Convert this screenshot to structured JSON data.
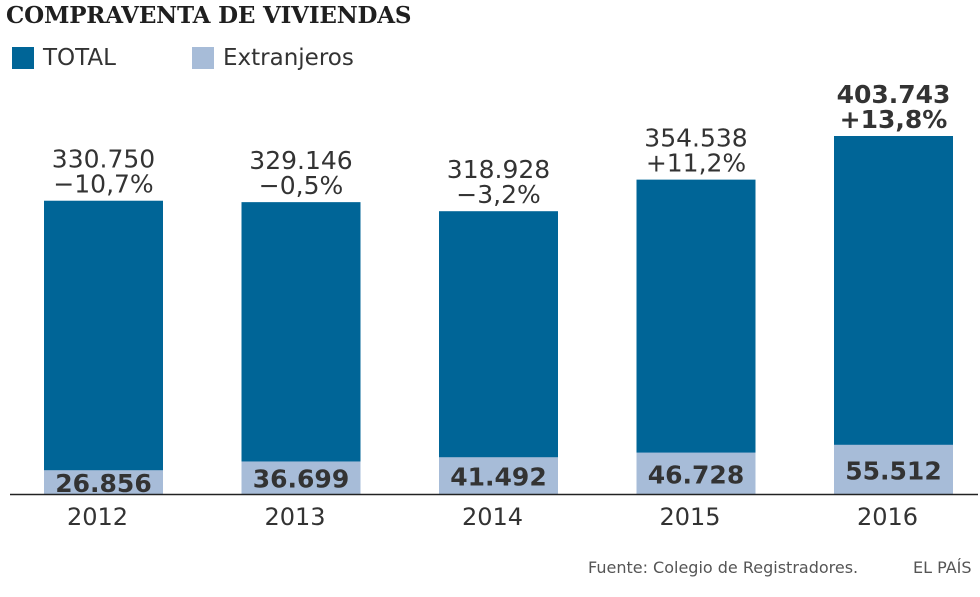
{
  "title": "COMPRAVENTA DE VIVIENDAS",
  "colors": {
    "total": "#006597",
    "extranjeros": "#a7bcd8",
    "axis": "#222222"
  },
  "chart_data": {
    "type": "bar",
    "title": "COMPRAVENTA DE VIVIENDAS",
    "categories": [
      "2012",
      "2013",
      "2014",
      "2015",
      "2016"
    ],
    "series": [
      {
        "name": "TOTAL",
        "values": [
          330750,
          329146,
          318928,
          354538,
          403743
        ]
      },
      {
        "name": "Extranjeros",
        "values": [
          26856,
          36699,
          41492,
          46728,
          55512
        ]
      }
    ],
    "total_labels": [
      "330.750",
      "329.146",
      "318.928",
      "354.538",
      "403.743"
    ],
    "change_labels": [
      "−10,7%",
      "−0,5%",
      "−3,2%",
      "+11,2%",
      "+13,8%"
    ],
    "extranjeros_labels": [
      "26.856",
      "36.699",
      "41.492",
      "46.728",
      "55.512"
    ],
    "highlight_index": 4,
    "legend_position": "top-left",
    "grid": false,
    "ylim": [
      0,
      403743
    ]
  },
  "source": "Fuente: Colegio de Registradores.",
  "brand": "EL PAÍS"
}
